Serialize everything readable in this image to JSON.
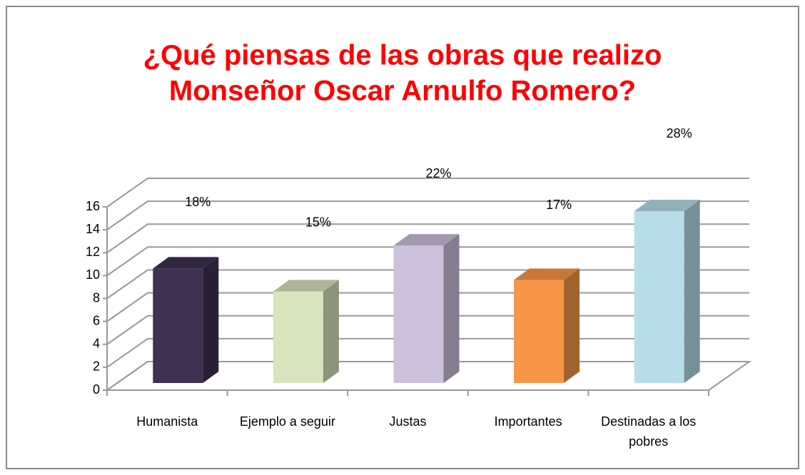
{
  "chart_data": {
    "type": "bar3d",
    "title": [
      "¿Qué piensas   de las obras que realizo",
      "Monseñor Oscar Arnulfo Romero?"
    ],
    "categories": [
      "Humanista",
      "Ejemplo a seguir",
      "Justas",
      "Importantes",
      "Destinadas a los pobres"
    ],
    "values": [
      10,
      8,
      12,
      9,
      15
    ],
    "annotations": [
      "18%",
      "15%",
      "22%",
      "17%",
      "28%"
    ],
    "colors": [
      "#3f3151",
      "#d7e4bd",
      "#ccc1da",
      "#f79646",
      "#b7dee8"
    ],
    "ylim": [
      0,
      16
    ],
    "yticks": [
      0,
      2,
      4,
      6,
      8,
      10,
      12,
      14,
      16
    ],
    "grid": true
  }
}
